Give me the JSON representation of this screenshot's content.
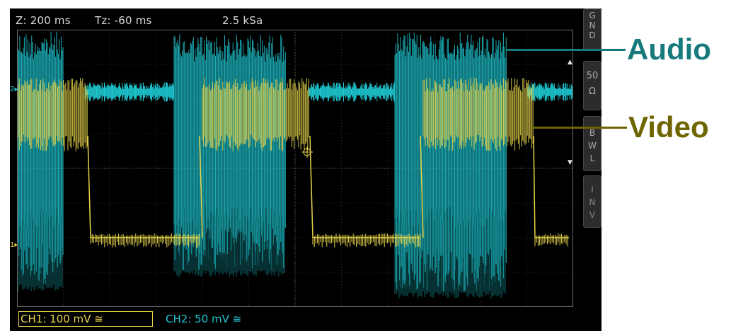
{
  "header": {
    "timebase": "Z: 200 ms",
    "trigger_time": "Tz: -60 ms",
    "sample_rate": "2.5 kSa"
  },
  "side_menu": [
    {
      "id": "gnd",
      "chars": [
        "G",
        "N",
        "D"
      ]
    },
    {
      "id": "ohm50",
      "chars": [
        "50",
        "Ω"
      ]
    },
    {
      "id": "bwl",
      "chars": [
        "B",
        "W",
        "L"
      ]
    },
    {
      "id": "inv",
      "chars": [
        "I",
        "N",
        "V"
      ]
    }
  ],
  "channels": {
    "ch1": {
      "label": "CH1: 100 mV ≅",
      "color": "#e8d44a",
      "marker": "1"
    },
    "ch2": {
      "label": "CH2: 50 mV ≅",
      "color": "#1ec8d2",
      "marker": "2"
    }
  },
  "annotations": {
    "audio": {
      "text": "Audio",
      "color": "#167a7c"
    },
    "video": {
      "text": "Video",
      "color": "#6e6400"
    }
  },
  "colors": {
    "screen_bg": "#000000",
    "grid": "#555555",
    "yellow_trace": "#e8d44a",
    "cyan_trace": "#1ec8d2"
  }
}
